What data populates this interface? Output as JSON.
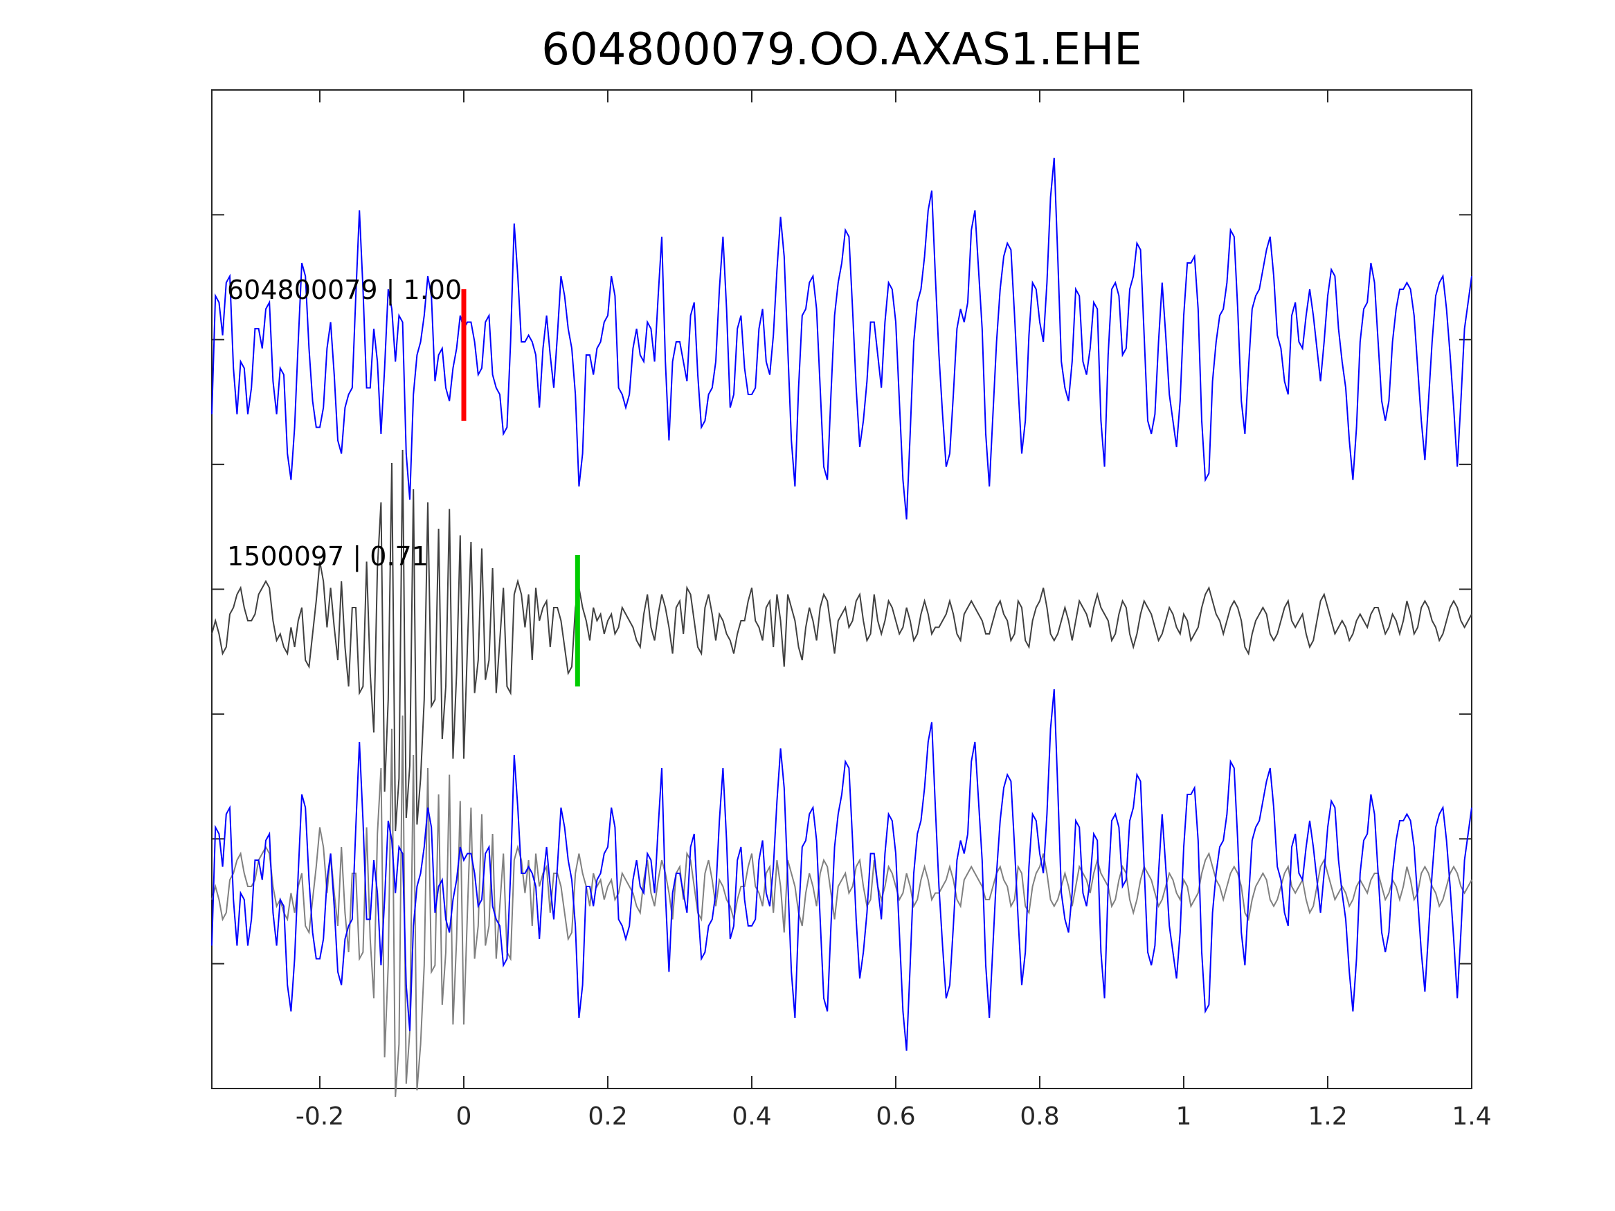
{
  "chart_data": {
    "type": "line",
    "title": "604800079.OO.AXAS1.EHE",
    "xlabel": "",
    "ylabel": "",
    "xlim": [
      -0.35,
      1.4
    ],
    "xticks": [
      -0.2,
      0,
      0.2,
      0.4,
      0.6,
      0.8,
      1,
      1.2,
      1.4
    ],
    "xtick_labels": [
      "-0.2",
      "0",
      "0.2",
      "0.4",
      "0.6",
      "0.8",
      "1",
      "1.2",
      "1.4"
    ],
    "ytick_count": 7,
    "ytick_labels_shown": false,
    "grid": false,
    "sample_interval": 0.005,
    "colors": {
      "trace1": "#0000ff",
      "trace2": "#404040",
      "overlay_trace2": "#808080",
      "pick1": "#ff0000",
      "pick2": "#00cc00",
      "axes": "#262626"
    },
    "series": [
      {
        "label": "604800079 | 1.00",
        "pick_time": 0.0,
        "pick_color": "#ff0000",
        "color": "#0000ff",
        "values": [
          -0.45,
          0.45,
          0.4,
          0.15,
          0.55,
          0.6,
          -0.1,
          -0.45,
          -0.05,
          -0.1,
          -0.45,
          -0.25,
          0.2,
          0.2,
          0.05,
          0.35,
          0.4,
          -0.2,
          -0.45,
          -0.1,
          -0.15,
          -0.75,
          -0.95,
          -0.55,
          0.1,
          0.7,
          0.6,
          0.05,
          -0.35,
          -0.55,
          -0.55,
          -0.4,
          0.05,
          0.25,
          -0.15,
          -0.65,
          -0.75,
          -0.4,
          -0.3,
          -0.25,
          0.45,
          1.1,
          0.5,
          -0.25,
          -0.25,
          0.2,
          -0.05,
          -0.6,
          -0.1,
          0.5,
          0.35,
          -0.05,
          0.3,
          0.25,
          -0.75,
          -1.1,
          -0.3,
          0.0,
          0.1,
          0.3,
          0.6,
          0.45,
          -0.2,
          0.0,
          0.05,
          -0.25,
          -0.35,
          -0.1,
          0.05,
          0.3,
          0.2,
          0.25,
          0.25,
          0.1,
          -0.15,
          -0.1,
          0.25,
          0.3,
          -0.15,
          -0.25,
          -0.3,
          -0.6,
          -0.55,
          0.1,
          1.0,
          0.6,
          0.1,
          0.1,
          0.15,
          0.1,
          0.0,
          -0.4,
          0.05,
          0.3,
          0.0,
          -0.25,
          0.15,
          0.6,
          0.45,
          0.2,
          0.05,
          -0.3,
          -1.0,
          -0.75,
          0.0,
          0.0,
          -0.15,
          0.05,
          0.1,
          0.25,
          0.3,
          0.6,
          0.45,
          -0.25,
          -0.3,
          -0.4,
          -0.3,
          0.05,
          0.2,
          0.0,
          -0.05,
          0.25,
          0.2,
          -0.05,
          0.45,
          0.9,
          -0.05,
          -0.65,
          -0.05,
          0.1,
          0.1,
          -0.05,
          -0.2,
          0.3,
          0.4,
          -0.15,
          -0.55,
          -0.5,
          -0.3,
          -0.25,
          -0.05,
          0.5,
          0.9,
          0.35,
          -0.4,
          -0.3,
          0.2,
          0.3,
          -0.1,
          -0.3,
          -0.3,
          -0.25,
          0.2,
          0.35,
          -0.05,
          -0.15,
          0.15,
          0.65,
          1.05,
          0.75,
          0.05,
          -0.65,
          -1.0,
          -0.25,
          0.3,
          0.35,
          0.55,
          0.6,
          0.35,
          -0.25,
          -0.85,
          -0.95,
          -0.3,
          0.3,
          0.55,
          0.7,
          0.95,
          0.9,
          0.35,
          -0.25,
          -0.7,
          -0.5,
          -0.2,
          0.25,
          0.25,
          0.0,
          -0.25,
          0.25,
          0.55,
          0.5,
          0.25,
          -0.35,
          -0.95,
          -1.25,
          -0.6,
          0.1,
          0.4,
          0.5,
          0.75,
          1.1,
          1.25,
          0.6,
          0.0,
          -0.45,
          -0.85,
          -0.75,
          -0.3,
          0.2,
          0.35,
          0.25,
          0.4,
          0.95,
          1.1,
          0.65,
          0.2,
          -0.6,
          -1.0,
          -0.45,
          0.1,
          0.5,
          0.75,
          0.85,
          0.8,
          0.3,
          -0.25,
          -0.75,
          -0.5,
          0.15,
          0.55,
          0.5,
          0.25,
          0.1,
          0.55,
          1.2,
          1.5,
          0.75,
          -0.05,
          -0.25,
          -0.35,
          -0.05,
          0.5,
          0.45,
          -0.05,
          -0.15,
          0.05,
          0.4,
          0.35,
          -0.5,
          -0.85,
          0.0,
          0.5,
          0.55,
          0.45,
          0.0,
          0.05,
          0.5,
          0.6,
          0.85,
          0.8,
          0.15,
          -0.5,
          -0.6,
          -0.45,
          0.1,
          0.55,
          0.15,
          -0.3,
          -0.5,
          -0.7,
          -0.35,
          0.3,
          0.7,
          0.7,
          0.75,
          0.35,
          -0.5,
          -0.95,
          -0.9,
          -0.2,
          0.1,
          0.3,
          0.35,
          0.55,
          0.95,
          0.9,
          0.35,
          -0.35,
          -0.6,
          -0.1,
          0.35,
          0.45,
          0.5,
          0.65,
          0.8,
          0.9,
          0.6,
          0.15,
          0.05,
          -0.2,
          -0.3,
          0.3,
          0.4,
          0.1,
          0.05,
          0.3,
          0.5,
          0.3,
          0.05,
          -0.2,
          0.1,
          0.45,
          0.65,
          0.6,
          0.2,
          -0.05,
          -0.25,
          -0.65,
          -0.95,
          -0.55,
          0.1,
          0.35,
          0.4,
          0.7,
          0.55,
          0.1,
          -0.35,
          -0.5,
          -0.35,
          0.1,
          0.35,
          0.5,
          0.5,
          0.55,
          0.5,
          0.3,
          -0.1,
          -0.5,
          -0.8,
          -0.35,
          0.1,
          0.45,
          0.55,
          0.6,
          0.35,
          0.0,
          -0.4,
          -0.85,
          -0.35,
          0.2,
          0.4,
          0.6,
          1.1,
          1.15,
          0.4,
          0.0,
          -0.15,
          -0.25,
          0.1,
          0.5,
          0.55,
          0.2,
          0.0,
          -0.3,
          -0.45,
          -0.2,
          0.1,
          0.3,
          0.55,
          0.8,
          1.15,
          1.0,
          0.45,
          0.05,
          -0.25,
          -0.4,
          0.0,
          0.3,
          0.45,
          0.7,
          0.65,
          0.5,
          0.3,
          0.1,
          -0.25,
          -0.4,
          0.0,
          0.55,
          0.65,
          0.25,
          0.0,
          -0.55,
          -0.8,
          -0.5,
          0.3,
          0.6,
          0.75,
          0.75,
          0.45,
          0.0,
          -0.25,
          -0.55,
          -0.85,
          -0.35,
          0.2,
          0.65,
          0.85,
          0.85,
          0.65,
          0.4,
          0.0,
          -0.5,
          -0.65,
          -0.7,
          0.0,
          0.55,
          0.65,
          0.55,
          0.35,
          0.15,
          0.0,
          -0.5,
          -1.05,
          -0.5,
          0.0,
          0.25,
          0.6,
          1.05,
          0.95,
          0.75,
          0.3,
          -0.05,
          -0.4,
          -0.6,
          -0.35,
          0.2,
          0.45,
          0.8,
          1.0,
          0.8,
          0.45,
          0.0,
          -0.4,
          -0.8,
          -0.55,
          0.05,
          0.55,
          0.75,
          0.95,
          0.95,
          0.75,
          0.35,
          -0.25,
          -0.55,
          -0.3,
          0.25,
          0.5,
          0.5,
          0.55,
          0.35,
          0.1,
          -0.15,
          -0.45,
          -0.3,
          -0.05
        ]
      },
      {
        "label": "1500097 | 0.71",
        "pick_time": 0.158,
        "pick_color": "#00cc00",
        "color": "#404040",
        "values": [
          -0.1,
          0.0,
          -0.1,
          -0.25,
          -0.2,
          0.05,
          0.1,
          0.2,
          0.25,
          0.1,
          0.0,
          0.0,
          0.05,
          0.2,
          0.25,
          0.3,
          0.25,
          0.0,
          -0.15,
          -0.1,
          -0.2,
          -0.25,
          -0.05,
          -0.2,
          0.0,
          0.1,
          -0.3,
          -0.35,
          -0.1,
          0.15,
          0.45,
          0.3,
          -0.05,
          0.25,
          -0.05,
          -0.3,
          0.3,
          -0.2,
          -0.5,
          0.1,
          0.1,
          -0.55,
          -0.5,
          0.45,
          -0.4,
          -0.85,
          0.4,
          0.9,
          -1.3,
          -0.6,
          1.2,
          -1.6,
          -1.2,
          1.3,
          -1.5,
          -1.1,
          1.0,
          -1.55,
          -1.2,
          -0.6,
          0.9,
          -0.65,
          -0.6,
          0.7,
          -0.9,
          -0.5,
          0.85,
          -1.05,
          -0.4,
          0.65,
          -1.05,
          -0.2,
          0.6,
          -0.55,
          -0.3,
          0.55,
          -0.45,
          -0.3,
          0.4,
          -0.55,
          -0.15,
          0.25,
          -0.5,
          -0.55,
          0.2,
          0.3,
          0.2,
          -0.05,
          0.2,
          -0.3,
          0.25,
          0.0,
          0.1,
          0.15,
          -0.2,
          0.1,
          0.1,
          0.0,
          -0.2,
          -0.4,
          -0.35,
          0.1,
          0.25,
          0.1,
          0.0,
          -0.15,
          0.1,
          0.0,
          0.05,
          -0.1,
          0.0,
          0.05,
          -0.1,
          -0.05,
          0.1,
          0.05,
          0.0,
          -0.05,
          -0.15,
          -0.2,
          0.05,
          0.2,
          -0.05,
          -0.15,
          0.05,
          0.2,
          0.1,
          -0.05,
          -0.25,
          0.1,
          0.15,
          -0.1,
          0.25,
          0.2,
          0.0,
          -0.2,
          -0.25,
          0.1,
          0.2,
          0.05,
          -0.15,
          0.05,
          0.0,
          -0.1,
          -0.15,
          -0.25,
          -0.1,
          0.0,
          0.0,
          0.15,
          0.25,
          0.0,
          -0.05,
          -0.15,
          0.1,
          0.15,
          -0.2,
          0.2,
          0.0,
          -0.35,
          0.2,
          0.1,
          0.0,
          -0.2,
          -0.3,
          -0.05,
          0.1,
          0.0,
          -0.15,
          0.1,
          0.2,
          0.15,
          -0.05,
          -0.25,
          0.0,
          0.05,
          0.1,
          -0.05,
          0.0,
          0.15,
          0.2,
          0.0,
          -0.15,
          -0.1,
          0.2,
          0.0,
          -0.1,
          0.0,
          0.15,
          0.1,
          0.0,
          -0.1,
          -0.05,
          0.1,
          0.0,
          -0.15,
          -0.1,
          0.05,
          0.15,
          0.05,
          -0.1,
          -0.05,
          -0.05,
          0.0,
          0.05,
          0.15,
          0.05,
          -0.1,
          -0.15,
          0.05,
          0.1,
          0.15,
          0.1,
          0.05,
          0.0,
          -0.1,
          -0.1,
          0.0,
          0.1,
          0.15,
          0.05,
          0.0,
          -0.15,
          -0.1,
          0.15,
          0.1,
          -0.15,
          -0.2,
          0.0,
          0.1,
          0.15,
          0.25,
          0.1,
          -0.1,
          -0.15,
          -0.1,
          0.0,
          0.1,
          0.0,
          -0.15,
          0.0,
          0.15,
          0.1,
          0.05,
          -0.05,
          0.1,
          0.2,
          0.1,
          0.05,
          0.0,
          -0.15,
          -0.1,
          0.05,
          0.15,
          0.1,
          -0.1,
          -0.2,
          -0.1,
          0.05,
          0.15,
          0.1,
          0.05,
          -0.05,
          -0.15,
          -0.1,
          0.0,
          0.1,
          0.05,
          -0.05,
          -0.1,
          0.05,
          0.0,
          -0.15,
          -0.1,
          -0.05,
          0.1,
          0.2,
          0.25,
          0.15,
          0.05,
          0.0,
          -0.1,
          0.0,
          0.1,
          0.15,
          0.1,
          0.0,
          -0.2,
          -0.25,
          -0.1,
          0.0,
          0.05,
          0.1,
          0.05,
          -0.1,
          -0.15,
          -0.1,
          0.0,
          0.1,
          0.15,
          0.0,
          -0.05,
          0.0,
          0.05,
          -0.1,
          -0.2,
          -0.15,
          0.0,
          0.15,
          0.2,
          0.1,
          0.0,
          -0.1,
          -0.05,
          0.0,
          -0.05,
          -0.15,
          -0.1,
          0.0,
          0.05,
          0.0,
          -0.05,
          0.05,
          0.1,
          0.1,
          0.0,
          -0.1,
          -0.05,
          0.05,
          0.0,
          -0.1,
          0.0,
          0.15,
          0.05,
          -0.1,
          -0.05,
          0.1,
          0.15,
          0.1,
          0.0,
          -0.05,
          -0.15,
          -0.1,
          0.0,
          0.1,
          0.15,
          0.1,
          0.0,
          -0.05,
          0.0,
          0.05,
          0.0,
          -0.1,
          -0.15,
          -0.05,
          0.05,
          0.1,
          0.15,
          0.05,
          -0.05,
          -0.1,
          -0.05,
          0.05,
          0.1,
          0.15,
          0.1,
          -0.05,
          -0.15,
          -0.1,
          0.0,
          0.05,
          0.1,
          0.0,
          -0.1,
          -0.05,
          0.05,
          0.1,
          0.05,
          -0.05,
          -0.15,
          -0.1,
          0.05,
          0.15,
          0.25,
          0.1,
          0.0,
          -0.1,
          -0.2,
          -0.15,
          0.0,
          0.1,
          0.2,
          0.15,
          0.05,
          -0.05,
          -0.1,
          -0.15,
          -0.05,
          0.1,
          0.2,
          0.15,
          0.0,
          -0.05,
          -0.15,
          -0.1,
          0.05,
          0.1,
          0.15,
          0.05,
          -0.05,
          -0.1,
          -0.05,
          0.05,
          0.1,
          0.0,
          -0.1,
          -0.15,
          -0.05,
          0.05,
          0.15,
          0.1,
          0.0,
          -0.1,
          -0.05,
          0.0,
          0.1,
          0.05,
          -0.05,
          -0.1,
          0.0,
          0.1,
          0.15,
          0.05,
          -0.05,
          -0.1,
          -0.05,
          0.05,
          0.1,
          0.0,
          -0.1,
          -0.15,
          -0.05,
          0.05,
          0.1,
          0.05,
          0.0,
          -0.05,
          0.0,
          0.1,
          0.05,
          -0.1,
          -0.15,
          -0.05,
          0.05,
          0.1,
          0.05,
          0.0,
          -0.05,
          0.0,
          0.05,
          0.1,
          0.0,
          -0.1,
          -0.05,
          0.05,
          0.1,
          0.05,
          0.0,
          -0.05
        ]
      }
    ]
  }
}
